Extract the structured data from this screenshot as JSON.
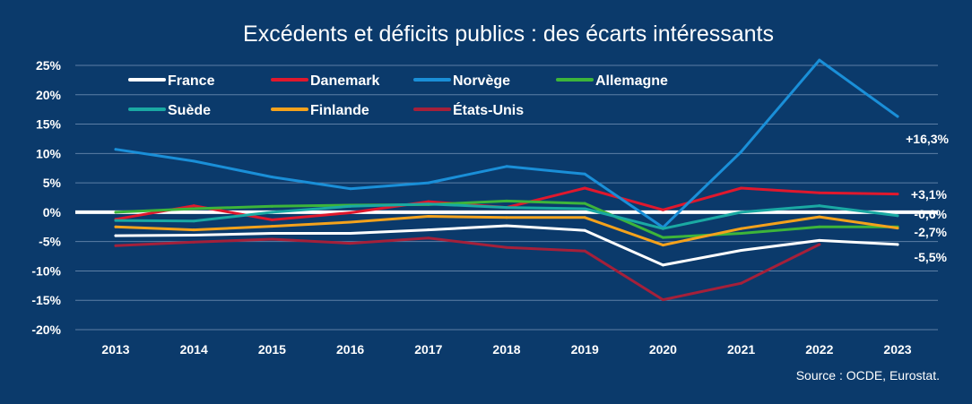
{
  "colors": {
    "background": "#0b3a6b",
    "grid": "#5d7fa6",
    "zero": "#ffffff",
    "text": "#ffffff"
  },
  "chart_data": {
    "type": "line",
    "title": "Excédents et déficits publics : des écarts intéressants",
    "source": "Source : OCDE, Eurostat.",
    "x": [
      "2013",
      "2014",
      "2015",
      "2016",
      "2017",
      "2018",
      "2019",
      "2020",
      "2021",
      "2022",
      "2023"
    ],
    "ylim": [
      -20,
      25
    ],
    "y_ticks": [
      25,
      20,
      15,
      10,
      5,
      0,
      -5,
      -10,
      -15,
      -20
    ],
    "y_tick_labels": [
      "25%",
      "20%",
      "15%",
      "10%",
      "5%",
      "0%",
      "-5%",
      "-10%",
      "-15%",
      "-20%"
    ],
    "grid": true,
    "legend_position": "top-left",
    "series": [
      {
        "name": "France",
        "color": "#ffffff",
        "values": [
          -4.0,
          -3.9,
          -3.6,
          -3.6,
          -3.0,
          -2.3,
          -3.1,
          -9.0,
          -6.5,
          -4.8,
          -5.5
        ],
        "end_label": "-5,5%"
      },
      {
        "name": "Danemark",
        "color": "#e0182d",
        "values": [
          -1.2,
          1.1,
          -1.3,
          -0.1,
          1.8,
          0.8,
          4.1,
          0.4,
          4.1,
          3.3,
          3.1
        ],
        "end_label": "+3,1%"
      },
      {
        "name": "Norvège",
        "color": "#1a8fd8",
        "values": [
          10.7,
          8.7,
          6.0,
          4.0,
          5.0,
          7.8,
          6.5,
          -2.6,
          10.3,
          25.9,
          16.3
        ],
        "end_label": "+16,3%"
      },
      {
        "name": "Allemagne",
        "color": "#3db53a",
        "values": [
          0.0,
          0.6,
          1.0,
          1.2,
          1.3,
          1.9,
          1.5,
          -4.3,
          -3.6,
          -2.5,
          -2.5
        ],
        "end_label": ""
      },
      {
        "name": "Suède",
        "color": "#1aa9a3",
        "values": [
          -1.4,
          -1.5,
          0.0,
          1.0,
          1.4,
          0.8,
          0.6,
          -2.8,
          0.0,
          1.1,
          -0.6
        ],
        "end_label": "-0,6%"
      },
      {
        "name": "Finlande",
        "color": "#f4a21c",
        "values": [
          -2.5,
          -3.0,
          -2.4,
          -1.7,
          -0.7,
          -0.9,
          -0.9,
          -5.6,
          -2.8,
          -0.8,
          -2.7
        ],
        "end_label": "-2,7%"
      },
      {
        "name": "États-Unis",
        "color": "#a5203a",
        "values": [
          -5.7,
          -5.1,
          -4.6,
          -5.3,
          -4.4,
          -6.0,
          -6.6,
          -14.9,
          -12.1,
          -5.5,
          null
        ],
        "end_label": ""
      }
    ]
  }
}
